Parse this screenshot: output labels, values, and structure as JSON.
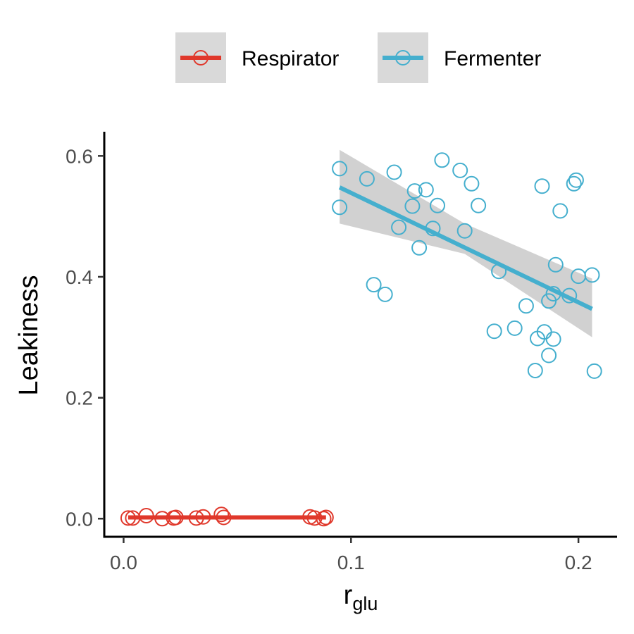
{
  "chart_data": {
    "type": "scatter",
    "xlabel": "r",
    "xlabel_subscript": "glu",
    "ylabel": "Leakiness",
    "xlim": [
      -0.0085,
      0.217
    ],
    "ylim": [
      -0.03,
      0.64
    ],
    "x_ticks": [
      0.0,
      0.1,
      0.2
    ],
    "x_tick_labels": [
      "0.0",
      "0.1",
      "0.2"
    ],
    "y_ticks": [
      0.0,
      0.2,
      0.4,
      0.6
    ],
    "y_tick_labels": [
      "0.0",
      "0.2",
      "0.4",
      "0.6"
    ],
    "grid": false,
    "legend_position": "top",
    "series": [
      {
        "name": "Respirator",
        "color": "#e0382b",
        "marker": "open-circle",
        "points": [
          [
            0.002,
            0.001
          ],
          [
            0.004,
            0.001
          ],
          [
            0.01,
            0.005
          ],
          [
            0.017,
            0.0
          ],
          [
            0.022,
            0.001
          ],
          [
            0.023,
            0.002
          ],
          [
            0.032,
            0.001
          ],
          [
            0.035,
            0.003
          ],
          [
            0.043,
            0.007
          ],
          [
            0.044,
            0.002
          ],
          [
            0.082,
            0.003
          ],
          [
            0.084,
            0.001
          ],
          [
            0.088,
            0.0
          ],
          [
            0.089,
            0.002
          ]
        ],
        "fit": {
          "x": [
            0.002,
            0.089
          ],
          "y": [
            0.002,
            0.002
          ]
        }
      },
      {
        "name": "Fermenter",
        "color": "#45afce",
        "marker": "open-circle",
        "points": [
          [
            0.095,
            0.579
          ],
          [
            0.095,
            0.515
          ],
          [
            0.107,
            0.562
          ],
          [
            0.11,
            0.387
          ],
          [
            0.115,
            0.371
          ],
          [
            0.119,
            0.573
          ],
          [
            0.121,
            0.482
          ],
          [
            0.127,
            0.517
          ],
          [
            0.128,
            0.542
          ],
          [
            0.13,
            0.448
          ],
          [
            0.133,
            0.544
          ],
          [
            0.136,
            0.48
          ],
          [
            0.138,
            0.518
          ],
          [
            0.14,
            0.593
          ],
          [
            0.148,
            0.576
          ],
          [
            0.15,
            0.476
          ],
          [
            0.153,
            0.554
          ],
          [
            0.156,
            0.518
          ],
          [
            0.163,
            0.31
          ],
          [
            0.165,
            0.409
          ],
          [
            0.172,
            0.315
          ],
          [
            0.177,
            0.352
          ],
          [
            0.181,
            0.245
          ],
          [
            0.182,
            0.298
          ],
          [
            0.184,
            0.55
          ],
          [
            0.185,
            0.309
          ],
          [
            0.187,
            0.27
          ],
          [
            0.187,
            0.36
          ],
          [
            0.189,
            0.372
          ],
          [
            0.189,
            0.297
          ],
          [
            0.19,
            0.42
          ],
          [
            0.192,
            0.509
          ],
          [
            0.196,
            0.369
          ],
          [
            0.198,
            0.554
          ],
          [
            0.199,
            0.56
          ],
          [
            0.2,
            0.401
          ],
          [
            0.206,
            0.403
          ],
          [
            0.207,
            0.244
          ]
        ],
        "fit": {
          "x": [
            0.095,
            0.206
          ],
          "y": [
            0.548,
            0.347
          ]
        },
        "ci": {
          "x": [
            0.095,
            0.15,
            0.206
          ],
          "upper": [
            0.61,
            0.488,
            0.397
          ],
          "lower": [
            0.488,
            0.438,
            0.3
          ]
        }
      }
    ]
  }
}
